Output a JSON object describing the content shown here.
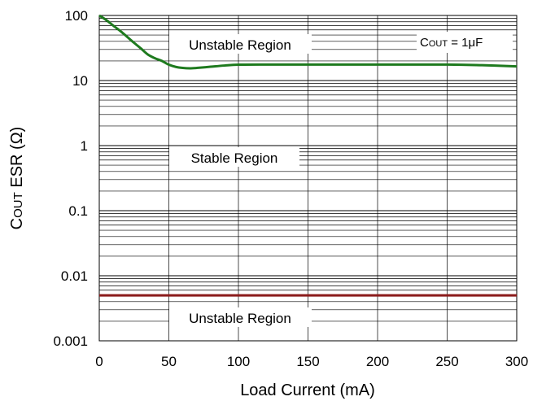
{
  "chart_data": {
    "type": "line",
    "title": "",
    "xlabel": "Load Current (mA)",
    "ylabel_main": "C",
    "ylabel_sub": "OUT",
    "ylabel_rest": " ESR (Ω)",
    "xlim": [
      0,
      300
    ],
    "ylim": [
      0.001,
      100
    ],
    "yscale": "log",
    "x_ticks": [
      "0",
      "50",
      "100",
      "150",
      "200",
      "250",
      "300"
    ],
    "y_ticks": [
      "0.001",
      "0.01",
      "0.1",
      "1",
      "10",
      "100"
    ],
    "grid": true,
    "annotations": {
      "upper_region": "Unstable Region",
      "middle_region": "Stable Region",
      "lower_region": "Unstable Region",
      "legend_main": "C",
      "legend_sub": "OUT",
      "legend_rest": " = 1",
      "legend_unit": "μF"
    },
    "series": [
      {
        "color": "#1e7a1e",
        "x": [
          0,
          5,
          10,
          15,
          20,
          25,
          30,
          35,
          40,
          45,
          50,
          55,
          60,
          65,
          70,
          80,
          90,
          100,
          120,
          150,
          200,
          250,
          275,
          300
        ],
        "y": [
          100,
          85,
          70,
          58,
          47,
          38,
          31,
          25,
          22,
          20,
          17.5,
          16.2,
          15.6,
          15.4,
          15.6,
          16.3,
          17,
          17.5,
          17.6,
          17.6,
          17.6,
          17.6,
          17.2,
          16.5
        ]
      },
      {
        "color": "#8b1a1a",
        "x": [
          0,
          300
        ],
        "y": [
          0.005,
          0.005
        ]
      }
    ]
  }
}
